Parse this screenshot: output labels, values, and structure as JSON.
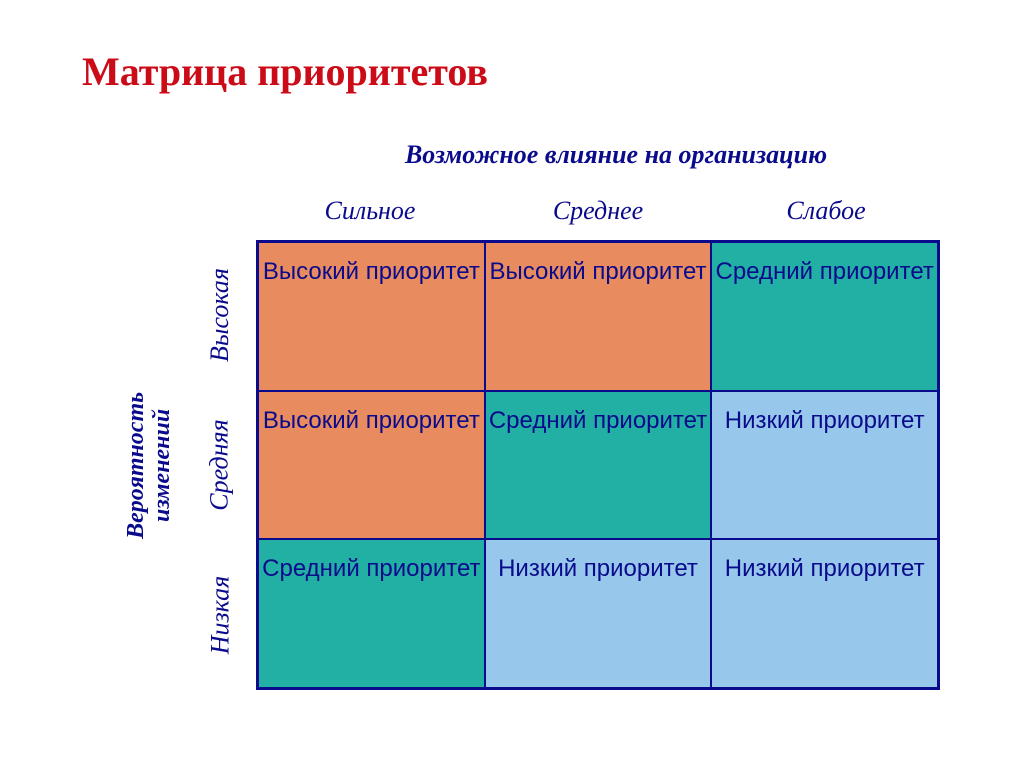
{
  "title": "Матрица приоритетов",
  "x_axis_title": "Возможное влияние на организацию",
  "y_axis_title": "Вероятность\nизменений",
  "x_labels": [
    "Сильное",
    "Среднее",
    "Слабое"
  ],
  "y_labels": [
    "Высокая",
    "Средняя",
    "Низкая"
  ],
  "cells": [
    [
      "Высокий приоритет",
      "Высокий приоритет",
      "Средний приоритет"
    ],
    [
      "Высокий приоритет",
      "Средний приоритет",
      "Низкий приоритет"
    ],
    [
      "Средний приоритет",
      "Низкий приоритет",
      "Низкий приоритет"
    ]
  ],
  "cell_colors": [
    [
      "#e88b5f",
      "#e88b5f",
      "#22b0a4"
    ],
    [
      "#e88b5f",
      "#22b0a4",
      "#97c7ea"
    ],
    [
      "#22b0a4",
      "#97c7ea",
      "#97c7ea"
    ]
  ],
  "colors": {
    "title": "#cc0b19",
    "axis_text": "#0a0a8c",
    "cell_text": "#0a0a8c",
    "border": "#0a0a8c",
    "background": "#ffffff"
  },
  "fontsizes": {
    "title": 40,
    "axis_title": 26,
    "axis_label": 26,
    "cell": 24
  }
}
